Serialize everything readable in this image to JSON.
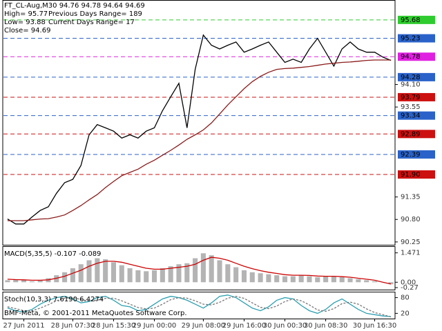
{
  "chart_data": [
    {
      "type": "line",
      "title": "FT_CL-Aug,M30  94.76 94.78 94.64 94.69",
      "info": [
        "High= 95.77",
        "Previous Days Range= 189",
        "Low= 93.88",
        "Current Days Range= 17",
        "Close= 94.69"
      ],
      "ylim": [
        90.18,
        96.15
      ],
      "yticks": [
        90.25,
        {
          "value": 90.8,
          "label": "90.80"
        },
        91.35,
        93.55,
        {
          "value": 94.1,
          "label": "94.10"
        }
      ],
      "series": [
        {
          "color": "#000000",
          "values": [
            90.81,
            90.69,
            90.69,
            90.86,
            91.02,
            91.11,
            91.44,
            91.7,
            91.78,
            92.12,
            92.87,
            93.12,
            93.04,
            92.96,
            92.79,
            92.87,
            92.79,
            92.96,
            93.04,
            93.46,
            93.8,
            94.13,
            93.04,
            94.47,
            95.31,
            95.06,
            94.97,
            95.06,
            95.14,
            94.89,
            94.97,
            95.06,
            95.14,
            94.89,
            94.64,
            94.72,
            94.64,
            94.97,
            95.23,
            94.89,
            94.55,
            94.97,
            95.14,
            94.97,
            94.89,
            94.89,
            94.77,
            94.69
          ]
        },
        {
          "color": "#8b1a1a",
          "values": [
            90.77,
            90.77,
            90.77,
            90.79,
            90.81,
            90.82,
            90.86,
            90.91,
            91.02,
            91.14,
            91.28,
            91.41,
            91.58,
            91.73,
            91.87,
            91.95,
            92.03,
            92.15,
            92.25,
            92.37,
            92.49,
            92.62,
            92.76,
            92.87,
            92.99,
            93.16,
            93.38,
            93.6,
            93.8,
            94.0,
            94.17,
            94.3,
            94.4,
            94.47,
            94.49,
            94.5,
            94.52,
            94.54,
            94.57,
            94.6,
            94.62,
            94.64,
            94.65,
            94.67,
            94.69,
            94.7,
            94.7,
            94.7
          ]
        }
      ],
      "levels": [
        {
          "value": 95.68,
          "color": "#2ecc2e",
          "label_color": "#000000"
        },
        {
          "value": 95.23,
          "color": "#2a62c9",
          "label_color": "#ffffff"
        },
        {
          "value": 94.78,
          "color": "#e020e0",
          "label_color": "#000000"
        },
        {
          "value": 94.28,
          "color": "#2a62c9",
          "label_color": "#ffffff"
        },
        {
          "value": 93.79,
          "color": "#cc1010",
          "label_color": "#ffffff"
        },
        {
          "value": 93.34,
          "color": "#2a62c9",
          "label_color": "#ffffff"
        },
        {
          "value": 92.89,
          "color": "#cc1010",
          "label_color": "#ffffff"
        },
        {
          "value": 92.39,
          "color": "#2a62c9",
          "label_color": "#ffffff"
        },
        {
          "value": 91.9,
          "label": "91.90",
          "color": "#cc1010",
          "label_color": "#ffffff"
        }
      ]
    },
    {
      "type": "bar",
      "title": "MACD(5,35,5) -0.107 -0.089",
      "ylim": [
        -0.37,
        1.77
      ],
      "yticks": [
        1.471,
        {
          "value": 0,
          "label": "0.00"
        },
        -0.27
      ],
      "color": "#b4b4b4",
      "values": [
        0.1,
        0.15,
        0.1,
        0.05,
        0.1,
        0.2,
        0.35,
        0.5,
        0.7,
        0.9,
        1.1,
        1.2,
        1.15,
        1.0,
        0.85,
        0.7,
        0.6,
        0.55,
        0.6,
        0.7,
        0.8,
        0.9,
        0.95,
        1.2,
        1.45,
        1.35,
        1.1,
        0.9,
        0.75,
        0.6,
        0.5,
        0.45,
        0.4,
        0.35,
        0.3,
        0.3,
        0.35,
        0.3,
        0.25,
        0.3,
        0.3,
        0.25,
        0.2,
        0.15,
        0.1,
        0.05,
        0.0,
        -0.1
      ],
      "signal": {
        "color": "#cc0000",
        "values": [
          0.15,
          0.13,
          0.12,
          0.1,
          0.1,
          0.12,
          0.2,
          0.3,
          0.45,
          0.6,
          0.8,
          0.95,
          1.05,
          1.05,
          1.0,
          0.9,
          0.8,
          0.7,
          0.65,
          0.65,
          0.7,
          0.75,
          0.8,
          0.9,
          1.1,
          1.25,
          1.2,
          1.1,
          0.95,
          0.8,
          0.68,
          0.58,
          0.5,
          0.44,
          0.38,
          0.35,
          0.35,
          0.34,
          0.31,
          0.3,
          0.3,
          0.28,
          0.25,
          0.2,
          0.15,
          0.1,
          0.0,
          -0.09
        ]
      }
    },
    {
      "type": "line",
      "title": "Stoch(10,3,3) 7.6190 6.4274",
      "note": "BMF-Meta, © 2001-2011 MetaQuotes Software Corp.",
      "ylim": [
        0,
        100
      ],
      "yticks": [
        80,
        20
      ],
      "categories": [
        null,
        null,
        "27 Jun 2011",
        null,
        null,
        null,
        null,
        null,
        "28 Jun 07:30",
        null,
        null,
        null,
        null,
        "28 Jun 15:30",
        null,
        null,
        null,
        null,
        "29 Jun 00:00",
        null,
        null,
        null,
        null,
        null,
        "29 Jun 08:00",
        null,
        null,
        null,
        null,
        "29 Jun 16:00",
        null,
        null,
        null,
        null,
        "30 Jun 00:30",
        null,
        null,
        null,
        null,
        "30 Jun 08:30",
        null,
        null,
        null,
        null,
        null,
        "30 Jun 16:30",
        null,
        null
      ],
      "series": [
        {
          "color": "#2a9fb0",
          "values": [
            40,
            30,
            25,
            35,
            55,
            70,
            80,
            85,
            75,
            60,
            65,
            80,
            85,
            70,
            50,
            45,
            30,
            35,
            55,
            75,
            85,
            80,
            70,
            55,
            40,
            60,
            85,
            90,
            80,
            60,
            40,
            30,
            45,
            70,
            80,
            75,
            50,
            30,
            20,
            35,
            60,
            75,
            55,
            35,
            20,
            15,
            10,
            7.619
          ]
        },
        {
          "color": "#777777",
          "values": [
            45,
            38,
            30,
            30,
            40,
            53,
            68,
            78,
            80,
            73,
            67,
            70,
            77,
            78,
            68,
            55,
            42,
            37,
            40,
            55,
            72,
            80,
            78,
            68,
            55,
            52,
            62,
            78,
            85,
            77,
            60,
            43,
            38,
            48,
            65,
            75,
            68,
            52,
            33,
            28,
            38,
            57,
            63,
            55,
            37,
            23,
            15,
            6.4274
          ]
        }
      ]
    }
  ]
}
